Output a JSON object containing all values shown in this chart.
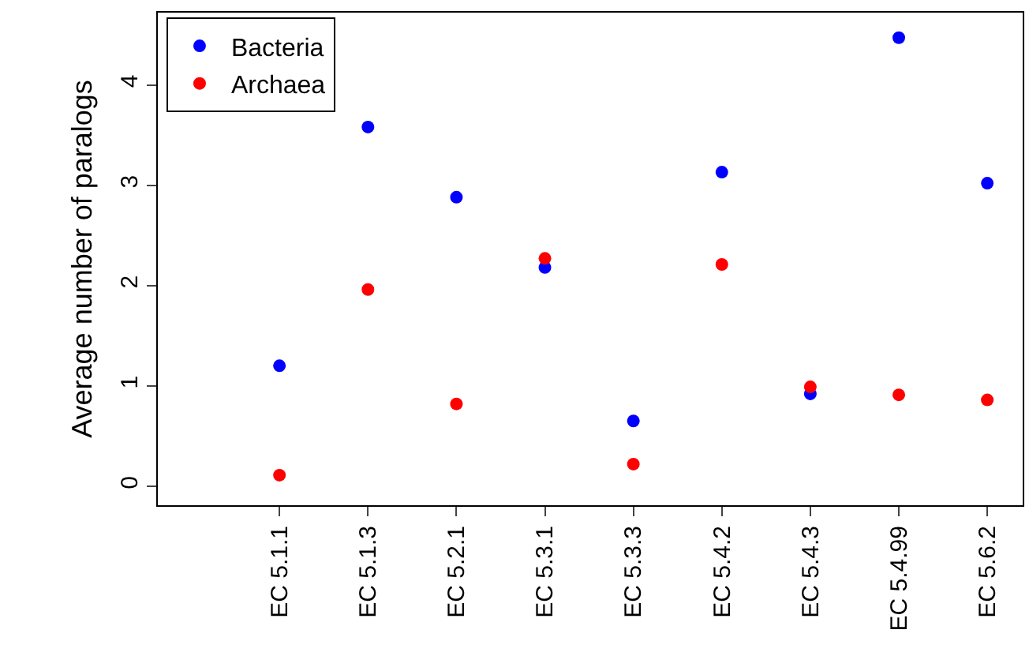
{
  "chart_data": {
    "type": "scatter",
    "ylabel": "Average number of paralogs",
    "categories": [
      null,
      "EC 5.1.1",
      "EC 5.1.3",
      "EC 5.2.1",
      "EC 5.3.1",
      "EC 5.3.3",
      "EC 5.4.2",
      "EC 5.4.3",
      "EC 5.4.99",
      "EC 5.6.2"
    ],
    "series": [
      {
        "name": "Bacteria",
        "color": "#0000ff",
        "values": [
          null,
          1.2,
          3.58,
          2.88,
          2.18,
          0.65,
          3.13,
          0.92,
          4.47,
          3.02
        ]
      },
      {
        "name": "Archaea",
        "color": "#ff0000",
        "values": [
          null,
          0.11,
          1.96,
          0.82,
          2.27,
          0.22,
          2.21,
          0.99,
          0.91,
          0.86
        ]
      }
    ],
    "ylim": [
      -0.19,
      4.72
    ],
    "yticks": [
      0,
      1,
      2,
      3,
      4
    ],
    "legend": "top left",
    "marker": "circle"
  }
}
